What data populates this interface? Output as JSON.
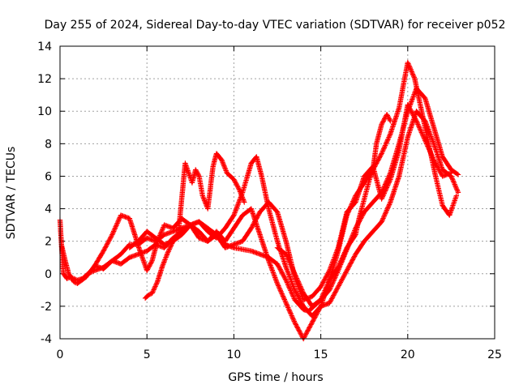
{
  "chart_data": {
    "type": "scatter",
    "title": "Day 255 of 2024, Sidereal Day-to-day VTEC variation (SDTVAR) for receiver p052",
    "xlabel": "GPS time / hours",
    "ylabel": "SDTVAR / TECUs",
    "xlim": [
      0,
      25
    ],
    "ylim": [
      -4,
      14
    ],
    "xticks": [
      0,
      5,
      10,
      15,
      20,
      25
    ],
    "yticks": [
      -4,
      -2,
      0,
      2,
      4,
      6,
      8,
      10,
      12,
      14
    ],
    "grid": true,
    "marker": "+",
    "color": "#ff0000",
    "series": [
      {
        "x": [
          0.0,
          0.1,
          0.2,
          0.4,
          0.6,
          0.8,
          1.0,
          1.3,
          1.6,
          2.0,
          2.5,
          3.0,
          3.5,
          4.0,
          4.5,
          5.0,
          5.5,
          6.0,
          6.5,
          7.0,
          7.5,
          8.0,
          8.5,
          9.0,
          9.5,
          10.0,
          10.5,
          11.0,
          11.5,
          12.0,
          12.5,
          13.0,
          13.5,
          14.0,
          14.3,
          14.6,
          15.0,
          15.5,
          16.0,
          16.5,
          17.0,
          17.5,
          18.0,
          18.5,
          19.0,
          19.5,
          20.0,
          20.5,
          21.0,
          21.5,
          22.0,
          22.5,
          22.9
        ],
        "y": [
          3.3,
          1.5,
          0.0,
          -0.3,
          -0.2,
          -0.3,
          -0.4,
          -0.3,
          0.0,
          0.2,
          0.4,
          0.8,
          1.2,
          1.8,
          1.8,
          2.2,
          2.0,
          2.4,
          2.6,
          2.8,
          3.0,
          3.2,
          2.8,
          2.4,
          1.8,
          1.6,
          1.5,
          1.4,
          1.2,
          1.0,
          0.6,
          -0.4,
          -1.6,
          -2.2,
          -2.3,
          -2.0,
          -1.6,
          -1.0,
          0.2,
          1.5,
          2.8,
          3.8,
          4.4,
          5.0,
          6.2,
          8.0,
          10.0,
          11.4,
          10.8,
          9.0,
          7.2,
          6.4,
          6.1
        ]
      },
      {
        "x": [
          0.1,
          0.3,
          0.5,
          0.8,
          1.0,
          1.5,
          2.0,
          2.5,
          3.0,
          3.5,
          4.0,
          4.3,
          4.6,
          5.0,
          5.3,
          5.6,
          6.0,
          6.5,
          7.0,
          7.5,
          8.0,
          8.5,
          9.0,
          9.5,
          10.0,
          10.5,
          11.0,
          11.5,
          12.0,
          12.5,
          13.0,
          13.5,
          14.0,
          14.5,
          15.0,
          15.5,
          16.0,
          16.5,
          17.0,
          17.5,
          18.0,
          18.5,
          19.0,
          19.5,
          20.0,
          20.4,
          20.8,
          21.2,
          21.6,
          22.0,
          22.4,
          22.8
        ],
        "y": [
          1.7,
          0.8,
          0.0,
          -0.5,
          -0.6,
          -0.2,
          0.5,
          1.4,
          2.4,
          3.6,
          3.4,
          2.4,
          1.4,
          0.2,
          0.8,
          2.0,
          3.0,
          2.8,
          3.4,
          3.0,
          2.2,
          2.0,
          2.6,
          2.0,
          2.8,
          3.6,
          4.0,
          2.4,
          0.8,
          -0.6,
          -1.8,
          -3.0,
          -4.0,
          -3.0,
          -2.0,
          -0.4,
          1.4,
          3.6,
          4.8,
          5.6,
          6.4,
          7.4,
          8.6,
          10.2,
          13.0,
          12.0,
          10.0,
          8.0,
          6.0,
          4.2,
          3.6,
          4.8
        ]
      },
      {
        "x": [
          2.0,
          2.5,
          3.0,
          3.5,
          4.0,
          4.5,
          5.0,
          5.5,
          6.0,
          6.5,
          7.0,
          7.5,
          8.0,
          8.5,
          9.0,
          9.5,
          10.0,
          10.5,
          11.0,
          11.3,
          11.6,
          12.0,
          12.5,
          13.0,
          13.5,
          14.0,
          14.5,
          15.0,
          15.5,
          16.0,
          16.5,
          17.0,
          17.5,
          18.0,
          18.5,
          19.0,
          19.5,
          20.0,
          20.5,
          21.0,
          21.5,
          22.0,
          22.5,
          22.9
        ],
        "y": [
          0.5,
          0.3,
          0.8,
          0.6,
          1.0,
          1.2,
          1.4,
          1.8,
          1.6,
          2.2,
          2.6,
          3.0,
          3.2,
          2.6,
          2.2,
          2.8,
          3.6,
          5.0,
          6.8,
          7.2,
          6.0,
          4.0,
          2.0,
          0.4,
          -1.0,
          -2.0,
          -2.6,
          -2.0,
          -1.8,
          -0.8,
          0.2,
          1.2,
          2.0,
          2.6,
          3.2,
          4.4,
          6.0,
          8.4,
          10.0,
          9.4,
          8.0,
          6.4,
          6.0,
          5.0
        ]
      },
      {
        "x": [
          4.0,
          4.5,
          5.0,
          5.5,
          6.0,
          6.5,
          7.0,
          7.5,
          8.0,
          8.5,
          9.0,
          9.5,
          10.0,
          10.5,
          11.0,
          11.5,
          12.0,
          12.5,
          13.0,
          13.5,
          14.0,
          14.5,
          15.0,
          15.5,
          16.0,
          16.5,
          17.0,
          17.5,
          18.0,
          18.5,
          19.0,
          19.5,
          20.0,
          20.5,
          21.0,
          21.5,
          22.0,
          22.5
        ],
        "y": [
          1.6,
          2.0,
          2.6,
          2.2,
          1.8,
          2.0,
          2.4,
          3.0,
          2.6,
          2.0,
          2.4,
          1.6,
          1.8,
          2.0,
          2.8,
          3.8,
          4.4,
          3.8,
          2.0,
          -0.2,
          -1.6,
          -1.4,
          -0.8,
          0.2,
          1.6,
          3.8,
          4.4,
          6.0,
          6.6,
          4.6,
          5.8,
          7.6,
          10.4,
          9.4,
          8.2,
          7.0,
          6.0,
          6.2
        ]
      },
      {
        "x": [
          4.9,
          5.1,
          5.3,
          5.6,
          5.9,
          6.2,
          6.5,
          6.8,
          7.2,
          7.4,
          7.6,
          7.8,
          8.0,
          8.2,
          8.5,
          8.8,
          9.0,
          9.3,
          9.6,
          10.0,
          10.3,
          10.6
        ],
        "y": [
          -1.5,
          -1.3,
          -1.2,
          -0.5,
          0.5,
          1.3,
          2.0,
          2.4,
          6.8,
          6.2,
          5.6,
          6.4,
          6.0,
          4.8,
          4.0,
          6.6,
          7.4,
          7.0,
          6.2,
          5.8,
          5.2,
          4.4
        ]
      },
      {
        "x": [
          12.5,
          13.0,
          13.5,
          14.0,
          14.5,
          15.0,
          15.5,
          16.0,
          16.5,
          17.0,
          17.2,
          17.5,
          17.8,
          18.0,
          18.2,
          18.5,
          18.8,
          19.0
        ],
        "y": [
          1.6,
          1.2,
          0.0,
          -1.2,
          -2.0,
          -1.6,
          -0.4,
          0.4,
          1.6,
          2.4,
          3.4,
          4.6,
          5.8,
          6.4,
          8.0,
          9.2,
          9.8,
          9.4
        ]
      }
    ]
  }
}
